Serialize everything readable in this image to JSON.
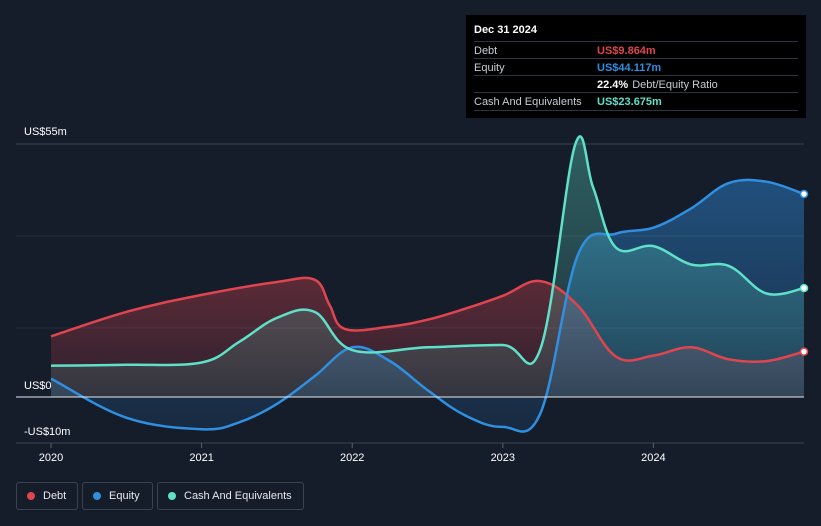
{
  "chart_data": {
    "type": "area",
    "title": "",
    "y_unit": "US$ m",
    "ylim": [
      -10,
      55
    ],
    "y_tick_labels": [
      {
        "value": 55,
        "label": "US$55m"
      },
      {
        "value": 0,
        "label": "US$0"
      },
      {
        "value": -10,
        "label": "-US$10m"
      }
    ],
    "x_ticks": [
      {
        "value": 2020,
        "label": "2020"
      },
      {
        "value": 2021,
        "label": "2021"
      },
      {
        "value": 2022,
        "label": "2022"
      },
      {
        "value": 2023,
        "label": "2023"
      },
      {
        "value": 2024,
        "label": "2024"
      }
    ],
    "xlim": [
      2019.98,
      2025.0
    ],
    "series": [
      {
        "name": "Debt",
        "color": "#e0454f",
        "points": [
          [
            2020.0,
            13.2
          ],
          [
            2020.5,
            18.5
          ],
          [
            2021.0,
            22.2
          ],
          [
            2021.5,
            25.0
          ],
          [
            2021.75,
            25.5
          ],
          [
            2021.85,
            20.0
          ],
          [
            2021.95,
            14.8
          ],
          [
            2022.25,
            15.3
          ],
          [
            2022.5,
            16.8
          ],
          [
            2022.75,
            19.2
          ],
          [
            2023.0,
            22.0
          ],
          [
            2023.25,
            25.2
          ],
          [
            2023.5,
            19.8
          ],
          [
            2023.75,
            8.8
          ],
          [
            2024.0,
            9.0
          ],
          [
            2024.25,
            10.8
          ],
          [
            2024.5,
            8.2
          ],
          [
            2024.75,
            7.8
          ],
          [
            2025.0,
            9.864
          ]
        ]
      },
      {
        "name": "Equity",
        "color": "#2f8fe0",
        "points": [
          [
            2020.0,
            4.0
          ],
          [
            2020.5,
            -4.5
          ],
          [
            2021.0,
            -7.0
          ],
          [
            2021.25,
            -5.5
          ],
          [
            2021.5,
            -1.5
          ],
          [
            2021.75,
            4.5
          ],
          [
            2022.0,
            10.8
          ],
          [
            2022.25,
            7.8
          ],
          [
            2022.5,
            1.5
          ],
          [
            2022.75,
            -4.0
          ],
          [
            2023.0,
            -6.5
          ],
          [
            2023.25,
            -3.5
          ],
          [
            2023.5,
            31.0
          ],
          [
            2023.75,
            35.5
          ],
          [
            2024.0,
            36.8
          ],
          [
            2024.25,
            41.0
          ],
          [
            2024.5,
            46.5
          ],
          [
            2024.75,
            46.8
          ],
          [
            2025.0,
            44.117
          ]
        ]
      },
      {
        "name": "Cash And Equivalents",
        "color": "#5fe0c8",
        "points": [
          [
            2020.0,
            6.8
          ],
          [
            2020.5,
            7.0
          ],
          [
            2021.0,
            7.5
          ],
          [
            2021.25,
            12.0
          ],
          [
            2021.5,
            17.2
          ],
          [
            2021.75,
            18.5
          ],
          [
            2022.0,
            10.2
          ],
          [
            2022.5,
            10.8
          ],
          [
            2023.0,
            11.3
          ],
          [
            2023.25,
            10.5
          ],
          [
            2023.48,
            54.8
          ],
          [
            2023.6,
            45.5
          ],
          [
            2023.75,
            32.5
          ],
          [
            2024.0,
            32.8
          ],
          [
            2024.25,
            28.8
          ],
          [
            2024.5,
            28.5
          ],
          [
            2024.75,
            22.5
          ],
          [
            2025.0,
            23.675
          ]
        ]
      }
    ],
    "tooltip": {
      "date": "Dec 31 2024",
      "rows": [
        {
          "label": "Debt",
          "value": "US$9.864m",
          "color": "#e0454f"
        },
        {
          "label": "Equity",
          "value": "US$44.117m",
          "color": "#2f8fe0"
        },
        {
          "label": "",
          "value": "22.4%",
          "color": "#ffffff",
          "sub": "Debt/Equity Ratio"
        },
        {
          "label": "Cash And Equivalents",
          "value": "US$23.675m",
          "color": "#5fe0c8"
        }
      ]
    },
    "legend": [
      {
        "name": "Debt",
        "color": "#e0454f"
      },
      {
        "name": "Equity",
        "color": "#2f8fe0"
      },
      {
        "name": "Cash And Equivalents",
        "color": "#5fe0c8"
      }
    ],
    "grid": true
  }
}
